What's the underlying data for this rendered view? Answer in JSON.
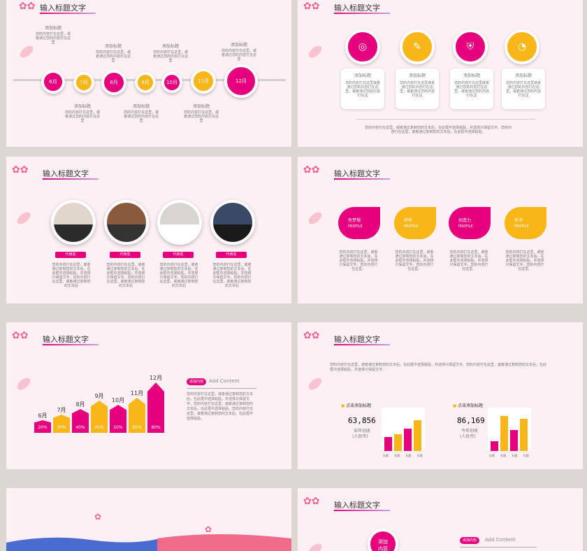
{
  "slides": {
    "title": "输入标题文字",
    "timeline": {
      "months": [
        "6月",
        "7月",
        "8月",
        "9月",
        "10月",
        "11月",
        "12月"
      ],
      "label": "添加标题",
      "desc": "您的内容打在这里，或者通过您的内容打在这里"
    },
    "icons": {
      "card_title": "添加标题",
      "card_text": "您的内容打在这里或者通过您的内容打在这里，或者通过您的内容打在这",
      "footer": "您的内容打在这里，或者通过复制您的文本后，在此框中选择粘贴，并选择只保留文字。您的内容打在这里，或者通过复制您的文本后，在此框中选择粘贴。"
    },
    "team": {
      "names": [
        "代用名",
        "代用名",
        "代用名",
        "代用名"
      ],
      "bio": "您的内容打在这里，或者通过复制您的文本后，在此框中选择粘贴，并选择只保留文字。您的内容打在这里，或者通过复制您的文本后"
    },
    "profile": {
      "items": [
        {
          "title": "有梦想",
          "sub": "PROFILE"
        },
        {
          "title": "好有",
          "sub": "PROFILE"
        },
        {
          "title": "创造力",
          "sub": "PROFILE"
        },
        {
          "title": "有冲",
          "sub": "PROFILE"
        }
      ],
      "text": "您的内容打在这里，或者通过复制您的文本后，在此框中选择粘贴，并选择只保留文字。您的内容打在这里。"
    },
    "bars": {
      "tag": "添加内容",
      "tag_en": "Add Content",
      "text": "您的内容打在这里，或者通过复制您的文本后，在此框中选择粘贴，并选择只保留文字。您的内容打在这里，或者通过复制您的文本后，在此框中选择粘贴。您的内容打在这里，或者通过复制您的文本后，在此框中选择粘贴。"
    },
    "stats": {
      "intro": "您的内容打在这里，或者通过复制您的文本后，在此框中选择粘贴，并选择只保留文字。您的内容打在这里，或者通过复制您的文本后，在此框中选择粘贴，并选择只保留文字。",
      "left": {
        "title": "点击添加标题",
        "value": "63,856",
        "label": "去年创收",
        "unit": "(人民币)"
      },
      "right": {
        "title": "点击添加标题",
        "value": "86,169",
        "label": "今年创收",
        "unit": "(人民币)"
      },
      "bar_label": "标题"
    },
    "last": {
      "circle": "添加\n内容",
      "tag": "添加内容",
      "tag_en": "Add Content"
    }
  },
  "chart_data": {
    "type": "bar",
    "categories": [
      "6月",
      "7月",
      "8月",
      "9月",
      "10月",
      "11月",
      "12月"
    ],
    "values": [
      20,
      30,
      40,
      45,
      50,
      65,
      80
    ],
    "value_labels": [
      "20%",
      "30%",
      "40%",
      "45%",
      "50%",
      "65%",
      "80%"
    ]
  },
  "colors": {
    "pink": "#e6007e",
    "yellow": "#f9b618",
    "bg": "#fdf0f4"
  }
}
